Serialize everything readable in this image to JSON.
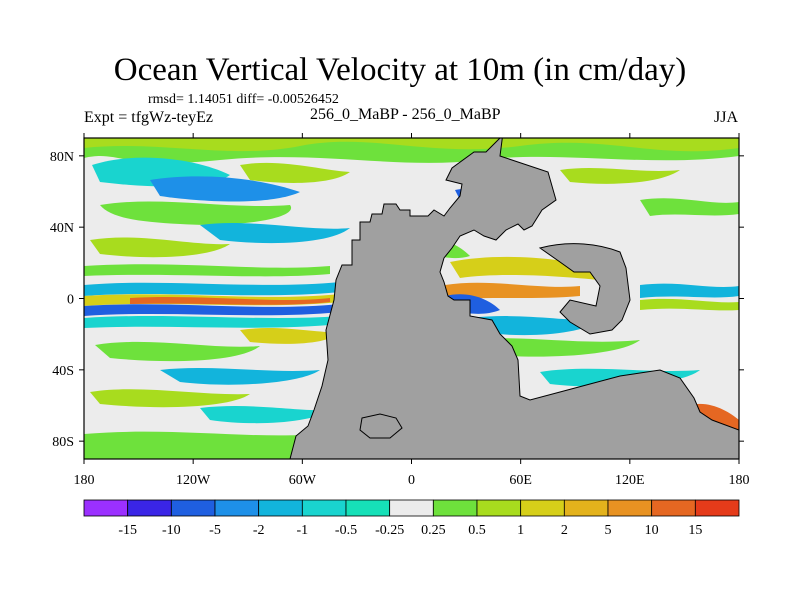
{
  "title": "Ocean Vertical Velocity at 10m (in cm/day)",
  "stats": {
    "rmsd_label": "rmsd= 1.14051",
    "diff_label": "diff= -0.00526452"
  },
  "experiment": "Expt = tfgWz-teyEz",
  "case_id": "256_0_MaBP - 256_0_MaBP",
  "season": "JJA",
  "map": {
    "lon_range": [
      -180,
      180
    ],
    "lat_range": [
      -90,
      90
    ],
    "land_color": "#a0a0a0",
    "x_ticks": [
      "180",
      "120W",
      "60W",
      "0",
      "60E",
      "120E",
      "180"
    ],
    "y_ticks": [
      "80N",
      "40N",
      "0",
      "40S",
      "80S"
    ]
  },
  "colorbar": {
    "colors": [
      "#9b30ff",
      "#3a25e6",
      "#1f5fe0",
      "#1e90e8",
      "#12b4dc",
      "#19d4cf",
      "#16e0b8",
      "#ececec",
      "#6ee13c",
      "#a8dc1e",
      "#d6cf19",
      "#e3b21c",
      "#e89222",
      "#e56722",
      "#e53b1a"
    ],
    "labels": [
      "-15",
      "-10",
      "-5",
      "-2",
      "-1",
      "-0.5",
      "-0.25",
      "0.25",
      "0.5",
      "1",
      "2",
      "5",
      "10",
      "15"
    ]
  }
}
